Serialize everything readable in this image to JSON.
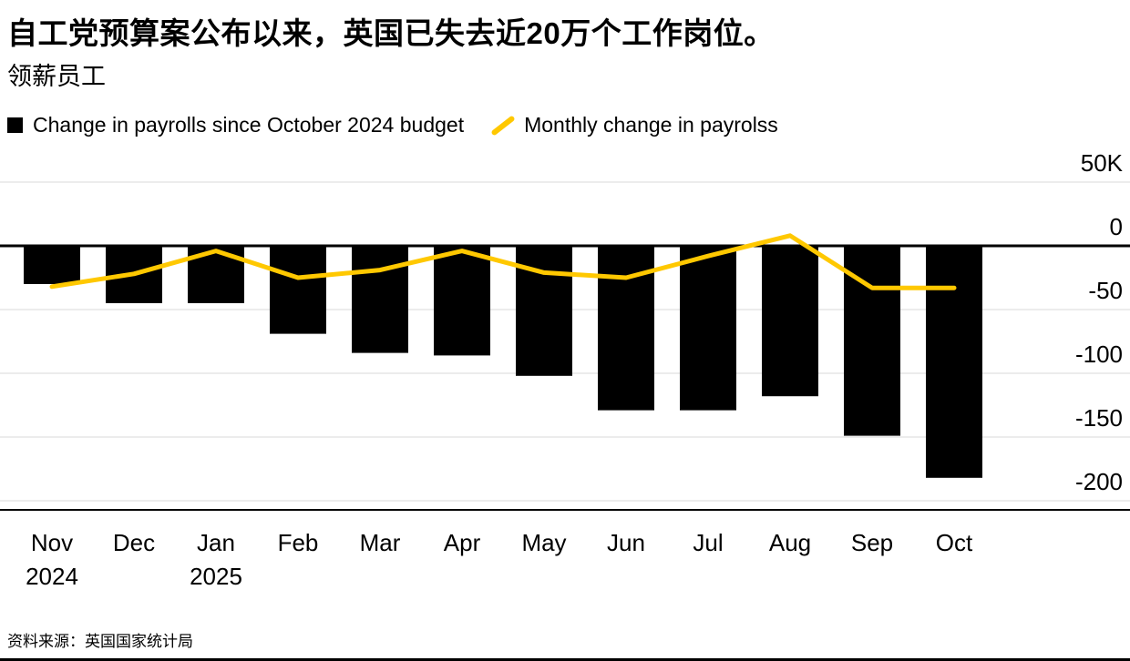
{
  "chart_data": {
    "type": "bar",
    "title": "自工党预算案公布以来，英国已失去近20万个工作岗位。",
    "subtitle": "领薪员工",
    "source": "资料来源：英国国家统计局",
    "unit": "K",
    "grid": true,
    "legend_position": "top",
    "categories": [
      "Nov",
      "Dec",
      "Jan",
      "Feb",
      "Mar",
      "Apr",
      "May",
      "Jun",
      "Jul",
      "Aug",
      "Sep",
      "Oct"
    ],
    "x_sublabels": [
      "2024",
      "",
      "2025",
      "",
      "",
      "",
      "",
      "",
      "",
      "",
      "",
      ""
    ],
    "series": [
      {
        "name": "Change in payrolls since October 2024 budget",
        "type": "bar",
        "color": "#000000",
        "values": [
          -30,
          -45,
          -45,
          -69,
          -84,
          -86,
          -102,
          -129,
          -129,
          -118,
          -149,
          -182
        ]
      },
      {
        "name": "Monthly change in payrolss",
        "type": "line",
        "color": "#FFC800",
        "values": [
          -32,
          -22,
          -4,
          -25,
          -19,
          -4,
          -21,
          -25,
          -8,
          8,
          -33,
          -33
        ]
      }
    ],
    "yticks": [
      {
        "value": 50,
        "label": "50K"
      },
      {
        "value": 0,
        "label": "0"
      },
      {
        "value": -50,
        "label": "-50"
      },
      {
        "value": -100,
        "label": "-100"
      },
      {
        "value": -150,
        "label": "-150"
      },
      {
        "value": -200,
        "label": "-200"
      }
    ],
    "ylim": [
      -220,
      60
    ]
  }
}
